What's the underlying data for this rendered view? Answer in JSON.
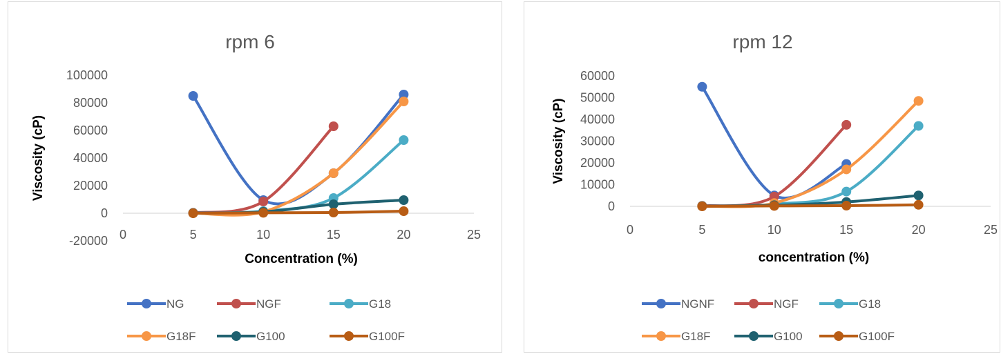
{
  "chart_data": [
    {
      "type": "line",
      "title": "rpm 6",
      "xlabel": "Concentration (%)",
      "ylabel": "Viscosity (cP)",
      "xlim": [
        0,
        25
      ],
      "ylim": [
        -20000,
        100000
      ],
      "xticks": [
        0,
        5,
        10,
        15,
        20,
        25
      ],
      "yticks": [
        -20000,
        0,
        20000,
        40000,
        60000,
        80000,
        100000
      ],
      "grid": "horizontal",
      "legend": "bottom",
      "series": [
        {
          "name": "NG",
          "color": "#4472c4",
          "x": [
            5,
            10,
            15,
            20
          ],
          "values": [
            85000,
            9500,
            29000,
            86000
          ]
        },
        {
          "name": "NGF",
          "color": "#c0504d",
          "x": [
            5,
            10,
            15
          ],
          "values": [
            300,
            8500,
            63000
          ]
        },
        {
          "name": "G18",
          "color": "#4bacc6",
          "x": [
            5,
            10,
            15,
            20
          ],
          "values": [
            200,
            1500,
            11000,
            53000
          ]
        },
        {
          "name": "G18F",
          "color": "#f79646",
          "x": [
            5,
            10,
            15,
            20
          ],
          "values": [
            100,
            1000,
            29000,
            81000
          ]
        },
        {
          "name": "G100",
          "color": "#1f6170",
          "x": [
            5,
            10,
            15,
            20
          ],
          "values": [
            100,
            1000,
            6500,
            9500
          ]
        },
        {
          "name": "G100F",
          "color": "#b85c14",
          "x": [
            5,
            10,
            15,
            20
          ],
          "values": [
            0,
            300,
            500,
            1500
          ]
        }
      ]
    },
    {
      "type": "line",
      "title": "rpm 12",
      "xlabel": "concentration (%)",
      "ylabel": "Viscosity (cP)",
      "xlim": [
        0,
        25
      ],
      "ylim": [
        0,
        60000
      ],
      "xticks": [
        0,
        5,
        10,
        15,
        20,
        25
      ],
      "yticks": [
        0,
        10000,
        20000,
        30000,
        40000,
        50000,
        60000
      ],
      "grid": "horizontal",
      "legend": "bottom",
      "series": [
        {
          "name": "NGNF",
          "color": "#4472c4",
          "x": [
            5,
            10,
            15
          ],
          "values": [
            55000,
            5000,
            19500
          ]
        },
        {
          "name": "NGF",
          "color": "#c0504d",
          "x": [
            5,
            10,
            15
          ],
          "values": [
            200,
            4500,
            37500
          ]
        },
        {
          "name": "G18",
          "color": "#4bacc6",
          "x": [
            5,
            10,
            15,
            20
          ],
          "values": [
            100,
            1000,
            6800,
            37000
          ]
        },
        {
          "name": "G18F",
          "color": "#f79646",
          "x": [
            5,
            10,
            15,
            20
          ],
          "values": [
            100,
            1500,
            17000,
            48500
          ]
        },
        {
          "name": "G100",
          "color": "#1f6170",
          "x": [
            5,
            10,
            15,
            20
          ],
          "values": [
            100,
            500,
            2000,
            5000
          ]
        },
        {
          "name": "G100F",
          "color": "#b85c14",
          "x": [
            5,
            10,
            15,
            20
          ],
          "values": [
            0,
            200,
            300,
            700
          ]
        }
      ]
    }
  ]
}
